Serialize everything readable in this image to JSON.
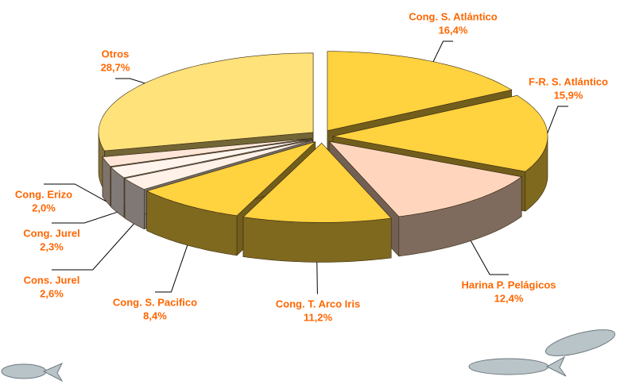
{
  "chart_data": {
    "type": "pie3d",
    "categories": [
      "Cong. S. Atlántico",
      "F-R. S. Atlántico",
      "Harina P. Pelágicos",
      "Cong. T. Arco Iris",
      "Cong. S. Pacifico",
      "Cons. Jurel",
      "Cong. Jurel",
      "Cong. Erizo",
      "Otros"
    ],
    "values": [
      16.4,
      15.9,
      12.4,
      11.2,
      8.4,
      2.6,
      2.3,
      2.0,
      28.7
    ],
    "value_labels": [
      "16,4%",
      "15,9%",
      "12,4%",
      "11,2%",
      "8,4%",
      "2,6%",
      "2,3%",
      "2,0%",
      "28,7%"
    ],
    "colors": [
      "#ffd23f",
      "#ffd23f",
      "#ffd6bd",
      "#ffd23f",
      "#ffd23f",
      "#fff0e8",
      "#fff4ee",
      "#ffe6d8",
      "#ffe27a"
    ]
  }
}
